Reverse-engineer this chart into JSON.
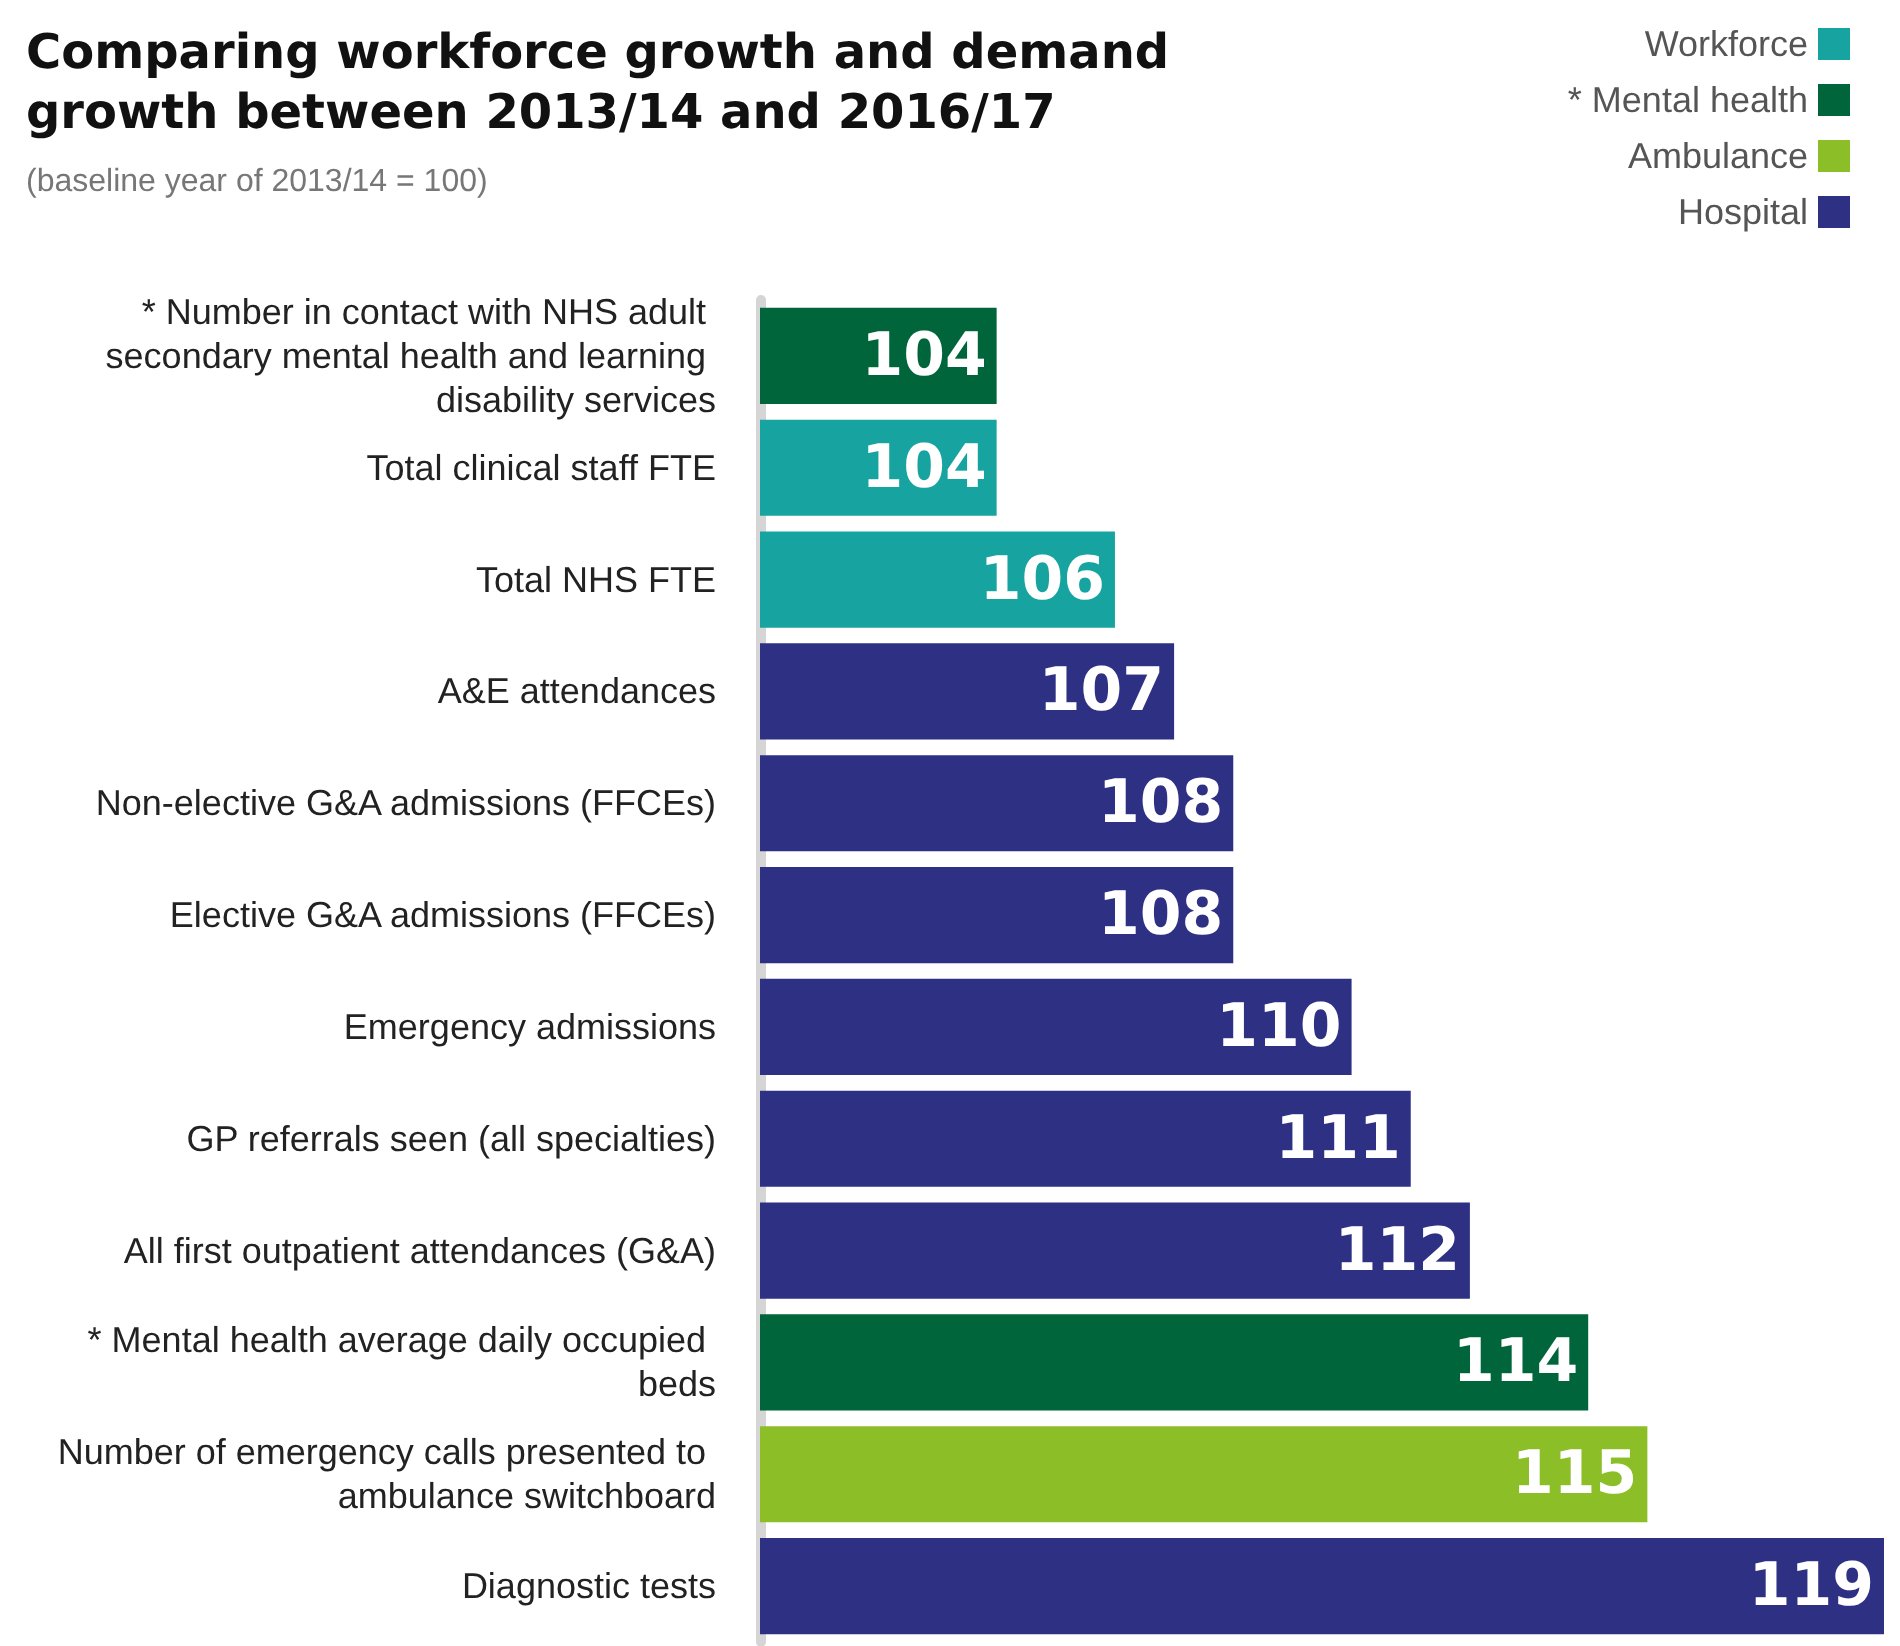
{
  "chart_data": {
    "type": "bar",
    "orientation": "horizontal",
    "title": "Comparing workforce growth and demand growth between 2013/14 and 2016/17",
    "subtitle": "(baseline year of 2013/14 = 100)",
    "categories": [
      "* Number in contact with NHS adult secondary mental health and learning disability services",
      "Total clinical staff FTE",
      "Total NHS FTE",
      "A&E attendances",
      "Non-elective G&A admissions (FFCEs)",
      "Elective G&A admissions (FFCEs)",
      "Emergency admissions",
      "GP referrals seen (all specialties)",
      "All first outpatient attendances (G&A)",
      "* Mental health average daily occupied beds",
      "Number of emergency calls presented to ambulance switchboard",
      "Diagnostic tests"
    ],
    "series": [
      {
        "name": "Workforce",
        "color": "#17a39f",
        "values": [
          null,
          104,
          106,
          null,
          null,
          null,
          null,
          null,
          null,
          null,
          null,
          null
        ]
      },
      {
        "name": "* Mental health",
        "color": "#00653b",
        "values": [
          104,
          null,
          null,
          null,
          null,
          null,
          null,
          null,
          null,
          114,
          null,
          null
        ]
      },
      {
        "name": "Ambulance",
        "color": "#8cbe27",
        "values": [
          null,
          null,
          null,
          null,
          null,
          null,
          null,
          null,
          null,
          null,
          115,
          null
        ]
      },
      {
        "name": "Hospital",
        "color": "#2e3083",
        "values": [
          null,
          null,
          null,
          107,
          108,
          108,
          110,
          111,
          112,
          null,
          null,
          119
        ]
      }
    ],
    "xlim": [
      100,
      119
    ],
    "tick_labels": "y",
    "data_labels": true,
    "legend": "top right",
    "grid": false
  }
}
